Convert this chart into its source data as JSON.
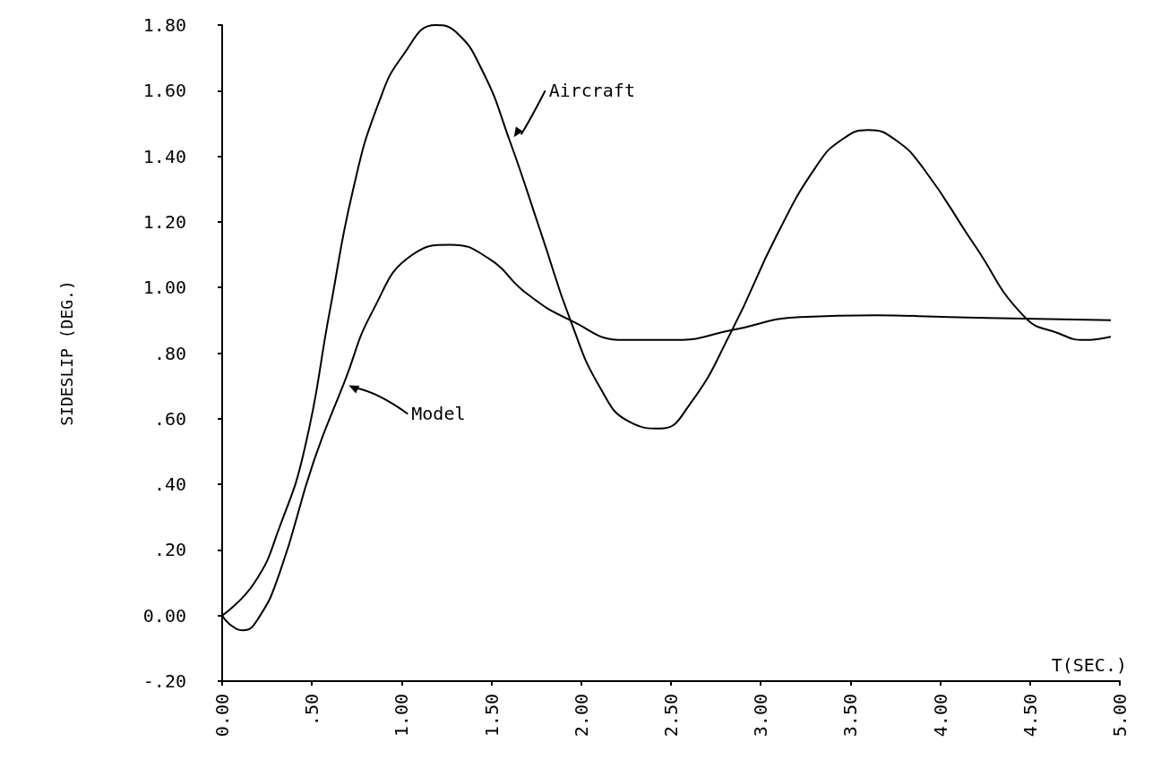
{
  "chart_data": {
    "type": "line",
    "xlabel": "T(SEC.)",
    "ylabel": "SIDESLIP (DEG.)",
    "xlim": [
      0,
      5
    ],
    "ylim": [
      -0.2,
      1.8
    ],
    "xticks": [
      {
        "value": 0,
        "label": "0.00"
      },
      {
        "value": 0.5,
        "label": ".50"
      },
      {
        "value": 1,
        "label": "1.00"
      },
      {
        "value": 1.5,
        "label": "1.50"
      },
      {
        "value": 2,
        "label": "2.00"
      },
      {
        "value": 2.5,
        "label": "2.50"
      },
      {
        "value": 3,
        "label": "3.00"
      },
      {
        "value": 3.5,
        "label": "3.50"
      },
      {
        "value": 4,
        "label": "4.00"
      },
      {
        "value": 4.5,
        "label": "4.50"
      },
      {
        "value": 5,
        "label": "5.00"
      }
    ],
    "yticks": [
      {
        "value": -0.2,
        "label": "-.20"
      },
      {
        "value": 0,
        "label": "0.00"
      },
      {
        "value": 0.2,
        "label": ".20"
      },
      {
        "value": 0.4,
        "label": ".40"
      },
      {
        "value": 0.6,
        "label": ".60"
      },
      {
        "value": 0.8,
        "label": ".80"
      },
      {
        "value": 1,
        "label": "1.00"
      },
      {
        "value": 1.2,
        "label": "1.20"
      },
      {
        "value": 1.4,
        "label": "1.40"
      },
      {
        "value": 1.6,
        "label": "1.60"
      },
      {
        "value": 1.8,
        "label": "1.80"
      }
    ],
    "annotations": [
      "Aircraft",
      "Model"
    ],
    "grid": false,
    "legend": false,
    "marker": "none",
    "line_style": "solid",
    "series": [
      {
        "color": "#000000",
        "x": [
          0,
          0.18,
          0.32,
          0.46,
          0.6,
          0.73,
          0.87,
          1.01,
          1.19,
          1.3,
          1.45,
          1.6,
          1.78,
          1.94,
          2.11,
          2.27,
          2.44,
          2.6,
          2.84,
          3.09,
          3.31,
          3.45,
          3.6,
          3.75,
          3.91,
          4.19,
          4.47,
          4.66,
          4.8,
          4.95
        ],
        "values": [
          0,
          0.1,
          0.27,
          0.51,
          0.93,
          1.3,
          1.56,
          1.71,
          1.8,
          1.78,
          1.66,
          1.45,
          1.16,
          0.9,
          0.69,
          0.59,
          0.57,
          0.64,
          0.87,
          1.16,
          1.37,
          1.45,
          1.48,
          1.45,
          1.36,
          1.13,
          0.91,
          0.86,
          0.84,
          0.85
        ]
      },
      {
        "color": "#000000",
        "x": [
          0,
          0.05,
          0.115,
          0.2,
          0.32,
          0.51,
          0.68,
          0.84,
          1.06,
          1.27,
          1.48,
          1.7,
          1.94,
          2.24,
          2.53,
          2.84,
          3.22,
          3.64,
          4.05,
          4.47,
          4.95
        ],
        "values": [
          0,
          -0.03,
          -0.045,
          -0.01,
          0.13,
          0.47,
          0.71,
          0.93,
          1.1,
          1.13,
          1.09,
          0.98,
          0.9,
          0.84,
          0.84,
          0.87,
          0.91,
          0.915,
          0.91,
          0.905,
          0.9
        ]
      }
    ]
  }
}
